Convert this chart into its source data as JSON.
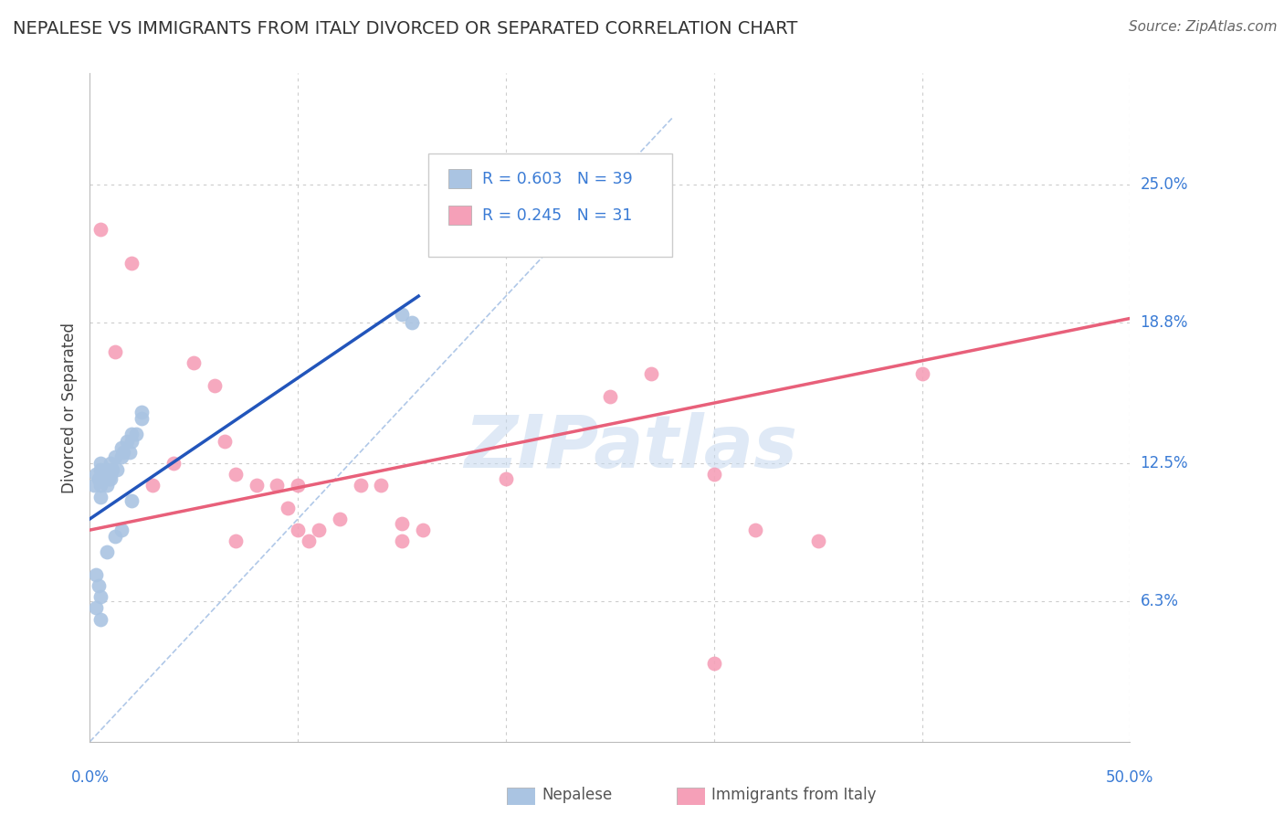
{
  "title": "NEPALESE VS IMMIGRANTS FROM ITALY DIVORCED OR SEPARATED CORRELATION CHART",
  "source": "Source: ZipAtlas.com",
  "ylabel": "Divorced or Separated",
  "xlim": [
    0.0,
    0.5
  ],
  "ylim": [
    0.0,
    0.3
  ],
  "ytick_values": [
    0.0,
    0.063,
    0.125,
    0.188,
    0.25
  ],
  "ytick_labels": [
    "",
    "6.3%",
    "12.5%",
    "18.8%",
    "25.0%"
  ],
  "xtick_values": [
    0.0,
    0.1,
    0.2,
    0.3,
    0.4,
    0.5
  ],
  "nepalese_color": "#aac4e2",
  "italy_color": "#f5a0b8",
  "nepalese_line_color": "#2255bb",
  "italy_line_color": "#e8607a",
  "diagonal_color": "#b0c8e8",
  "watermark": "ZIPatlas",
  "nepalese_x": [
    0.002,
    0.003,
    0.004,
    0.005,
    0.005,
    0.005,
    0.005,
    0.006,
    0.007,
    0.008,
    0.008,
    0.009,
    0.01,
    0.01,
    0.01,
    0.011,
    0.012,
    0.013,
    0.015,
    0.015,
    0.016,
    0.018,
    0.019,
    0.02,
    0.02,
    0.022,
    0.025,
    0.025,
    0.003,
    0.004,
    0.005,
    0.008,
    0.012,
    0.015,
    0.02,
    0.15,
    0.155,
    0.003,
    0.005
  ],
  "nepalese_y": [
    0.115,
    0.12,
    0.118,
    0.122,
    0.125,
    0.115,
    0.11,
    0.118,
    0.12,
    0.122,
    0.115,
    0.118,
    0.125,
    0.12,
    0.118,
    0.122,
    0.128,
    0.122,
    0.132,
    0.128,
    0.13,
    0.135,
    0.13,
    0.138,
    0.135,
    0.138,
    0.145,
    0.148,
    0.075,
    0.07,
    0.065,
    0.085,
    0.092,
    0.095,
    0.108,
    0.192,
    0.188,
    0.06,
    0.055
  ],
  "italy_x": [
    0.005,
    0.012,
    0.02,
    0.03,
    0.04,
    0.05,
    0.06,
    0.065,
    0.07,
    0.08,
    0.09,
    0.095,
    0.1,
    0.105,
    0.11,
    0.12,
    0.13,
    0.14,
    0.15,
    0.16,
    0.25,
    0.27,
    0.3,
    0.32,
    0.35,
    0.4,
    0.07,
    0.1,
    0.15,
    0.2,
    0.3
  ],
  "italy_y": [
    0.23,
    0.175,
    0.215,
    0.115,
    0.125,
    0.17,
    0.16,
    0.135,
    0.12,
    0.115,
    0.115,
    0.105,
    0.115,
    0.09,
    0.095,
    0.1,
    0.115,
    0.115,
    0.09,
    0.095,
    0.155,
    0.165,
    0.12,
    0.095,
    0.09,
    0.165,
    0.09,
    0.095,
    0.098,
    0.118,
    0.035
  ],
  "nep_line_x": [
    0.0,
    0.158
  ],
  "nep_line_y": [
    0.1,
    0.2
  ],
  "ita_line_x": [
    0.0,
    0.5
  ],
  "ita_line_y": [
    0.095,
    0.19
  ],
  "background_color": "#ffffff",
  "grid_color": "#cccccc"
}
